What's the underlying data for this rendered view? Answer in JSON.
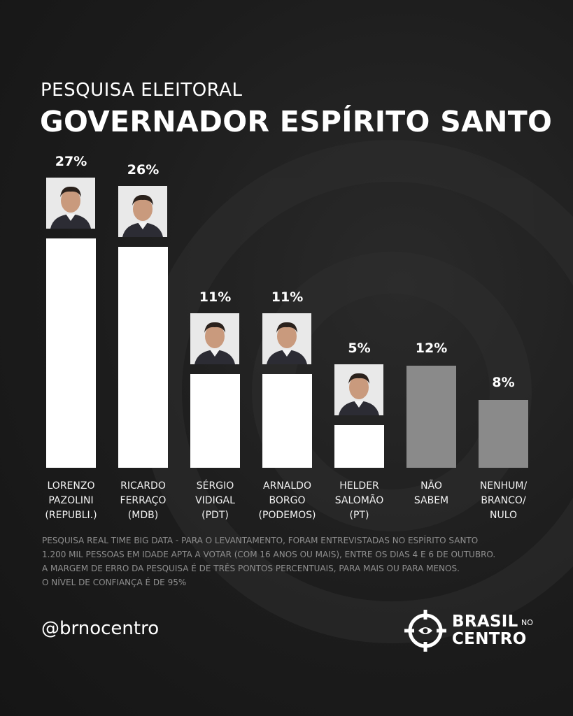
{
  "header": {
    "subtitle": "PESQUISA ELEITORAL",
    "title": "GOVERNADOR ESPÍRITO SANTO"
  },
  "chart_data": {
    "type": "bar",
    "categories": [
      "LORENZO\nPAZOLINI\n(REPUBLI.)",
      "RICARDO\nFERRAÇO\n(MDB)",
      "SÉRGIO\nVIDIGAL\n(PDT)",
      "ARNALDO\nBORGO\n(PODEMOS)",
      "HELDER\nSALOMÃO\n(PT)",
      "NÃO\nSABEM",
      "NENHUM/\nBRANCO/\nNULO"
    ],
    "values": [
      27,
      26,
      11,
      11,
      5,
      12,
      8
    ],
    "value_labels": [
      "27%",
      "26%",
      "11%",
      "11%",
      "5%",
      "12%",
      "8%"
    ],
    "has_photo": [
      true,
      true,
      true,
      true,
      true,
      false,
      false
    ],
    "bar_colors": [
      "#ffffff",
      "#ffffff",
      "#ffffff",
      "#ffffff",
      "#ffffff",
      "#8a8a8a",
      "#8a8a8a"
    ],
    "ylim": [
      0,
      27
    ]
  },
  "footnote": {
    "lines": [
      "PESQUISA REAL TIME BIG DATA - PARA O LEVANTAMENTO, FORAM ENTREVISTADAS NO ESPÍRITO SANTO",
      "1.200 MIL PESSOAS EM IDADE APTA A VOTAR (COM 16 ANOS OU MAIS), ENTRE OS DIAS 4 E 6 DE OUTUBRO.",
      "A MARGEM DE ERRO DA PESQUISA É DE TRÊS PONTOS PERCENTUAIS, PARA MAIS OU PARA MENOS.",
      "O NÍVEL DE CONFIANÇA É DE 95%"
    ]
  },
  "footer": {
    "handle": "@brnocentro",
    "brand_line1": "BRASIL",
    "brand_small": "NO",
    "brand_line2": "CENTRO"
  },
  "colors": {
    "background": "#1c1c1c",
    "candidate_bar": "#ffffff",
    "other_bar": "#8a8a8a",
    "footnote_text": "#8f8f8f"
  }
}
